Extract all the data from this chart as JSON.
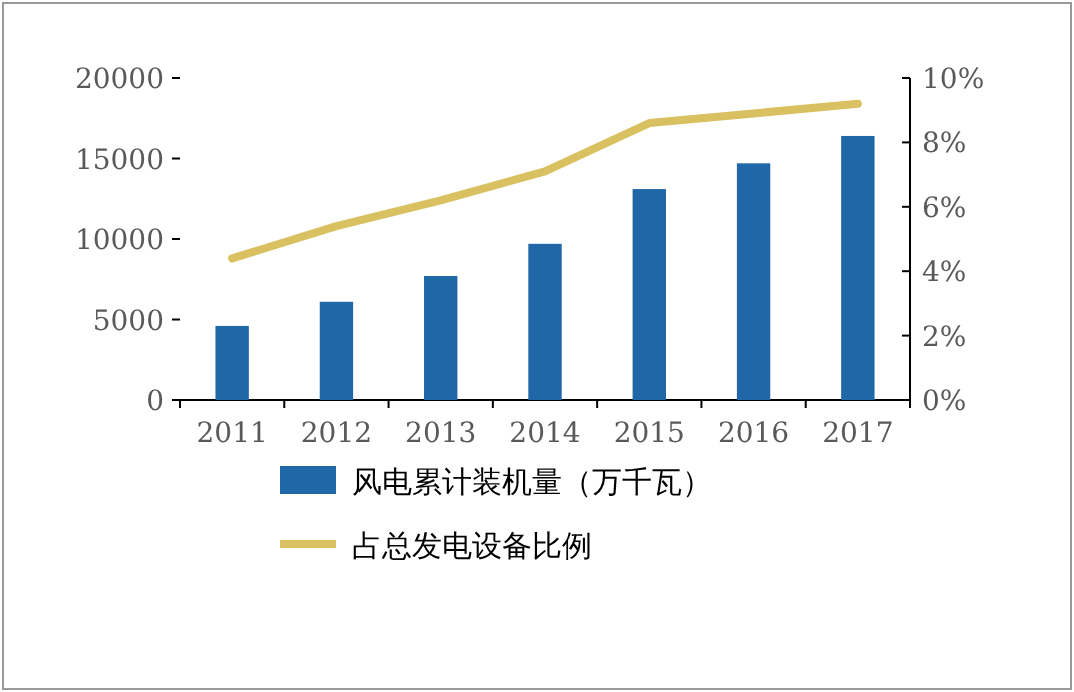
{
  "chart_data": {
    "type": "bar",
    "categories": [
      "2011",
      "2012",
      "2013",
      "2014",
      "2015",
      "2016",
      "2017"
    ],
    "series": [
      {
        "name": "风电累计装机量（万千瓦）",
        "color": "#1f67a6",
        "values": [
          4600,
          6100,
          7700,
          9700,
          13100,
          14700,
          16400
        ]
      },
      {
        "name": "占总发电设备比例",
        "type": "line",
        "axis": "y2",
        "color": "#d9c060",
        "values": [
          4.4,
          5.4,
          6.2,
          7.1,
          8.6,
          8.9,
          9.2
        ]
      }
    ],
    "ylim": [
      0,
      20000
    ],
    "yticks": [
      0,
      5000,
      10000,
      15000,
      20000
    ],
    "y2lim": [
      0,
      10
    ],
    "y2ticks": [
      {
        "value": 0,
        "label": "0%"
      },
      {
        "value": 2,
        "label": "2%"
      },
      {
        "value": 4,
        "label": "4%"
      },
      {
        "value": 6,
        "label": "6%"
      },
      {
        "value": 8,
        "label": "8%"
      },
      {
        "value": 10,
        "label": "10%"
      }
    ],
    "legend": "bottom",
    "grid": false
  }
}
